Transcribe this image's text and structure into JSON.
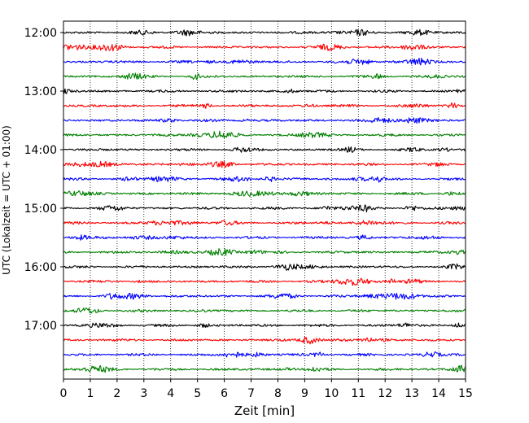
{
  "chart_data": {
    "type": "line",
    "title": "",
    "xlabel": "Zeit  [min]",
    "ylabel": "UTC (Lokalzeit = UTC + 01:00)",
    "xlim": [
      0,
      15
    ],
    "x_ticks": [
      0,
      1,
      2,
      3,
      4,
      5,
      6,
      7,
      8,
      9,
      10,
      11,
      12,
      13,
      14,
      15
    ],
    "y_tick_labels": [
      "12:00",
      "13:00",
      "14:00",
      "15:00",
      "16:00",
      "17:00"
    ],
    "grid": "vertical-dotted",
    "legend": "none",
    "trace_interval_minutes": 15,
    "trace_color_cycle": [
      "#000000",
      "#ff0000",
      "#0000ff",
      "#008000"
    ],
    "traces": [
      {
        "start": "12:00",
        "color": "#000000"
      },
      {
        "start": "12:15",
        "color": "#ff0000"
      },
      {
        "start": "12:30",
        "color": "#0000ff"
      },
      {
        "start": "12:45",
        "color": "#008000"
      },
      {
        "start": "13:00",
        "color": "#000000"
      },
      {
        "start": "13:15",
        "color": "#ff0000"
      },
      {
        "start": "13:30",
        "color": "#0000ff"
      },
      {
        "start": "13:45",
        "color": "#008000"
      },
      {
        "start": "14:00",
        "color": "#000000"
      },
      {
        "start": "14:15",
        "color": "#ff0000"
      },
      {
        "start": "14:30",
        "color": "#0000ff"
      },
      {
        "start": "14:45",
        "color": "#008000"
      },
      {
        "start": "15:00",
        "color": "#000000"
      },
      {
        "start": "15:15",
        "color": "#ff0000"
      },
      {
        "start": "15:30",
        "color": "#0000ff"
      },
      {
        "start": "15:45",
        "color": "#008000"
      },
      {
        "start": "16:00",
        "color": "#000000"
      },
      {
        "start": "16:15",
        "color": "#ff0000"
      },
      {
        "start": "16:30",
        "color": "#0000ff"
      },
      {
        "start": "16:45",
        "color": "#008000"
      },
      {
        "start": "17:00",
        "color": "#000000"
      },
      {
        "start": "17:15",
        "color": "#ff0000"
      },
      {
        "start": "17:30",
        "color": "#0000ff"
      },
      {
        "start": "17:45",
        "color": "#008000"
      }
    ]
  }
}
